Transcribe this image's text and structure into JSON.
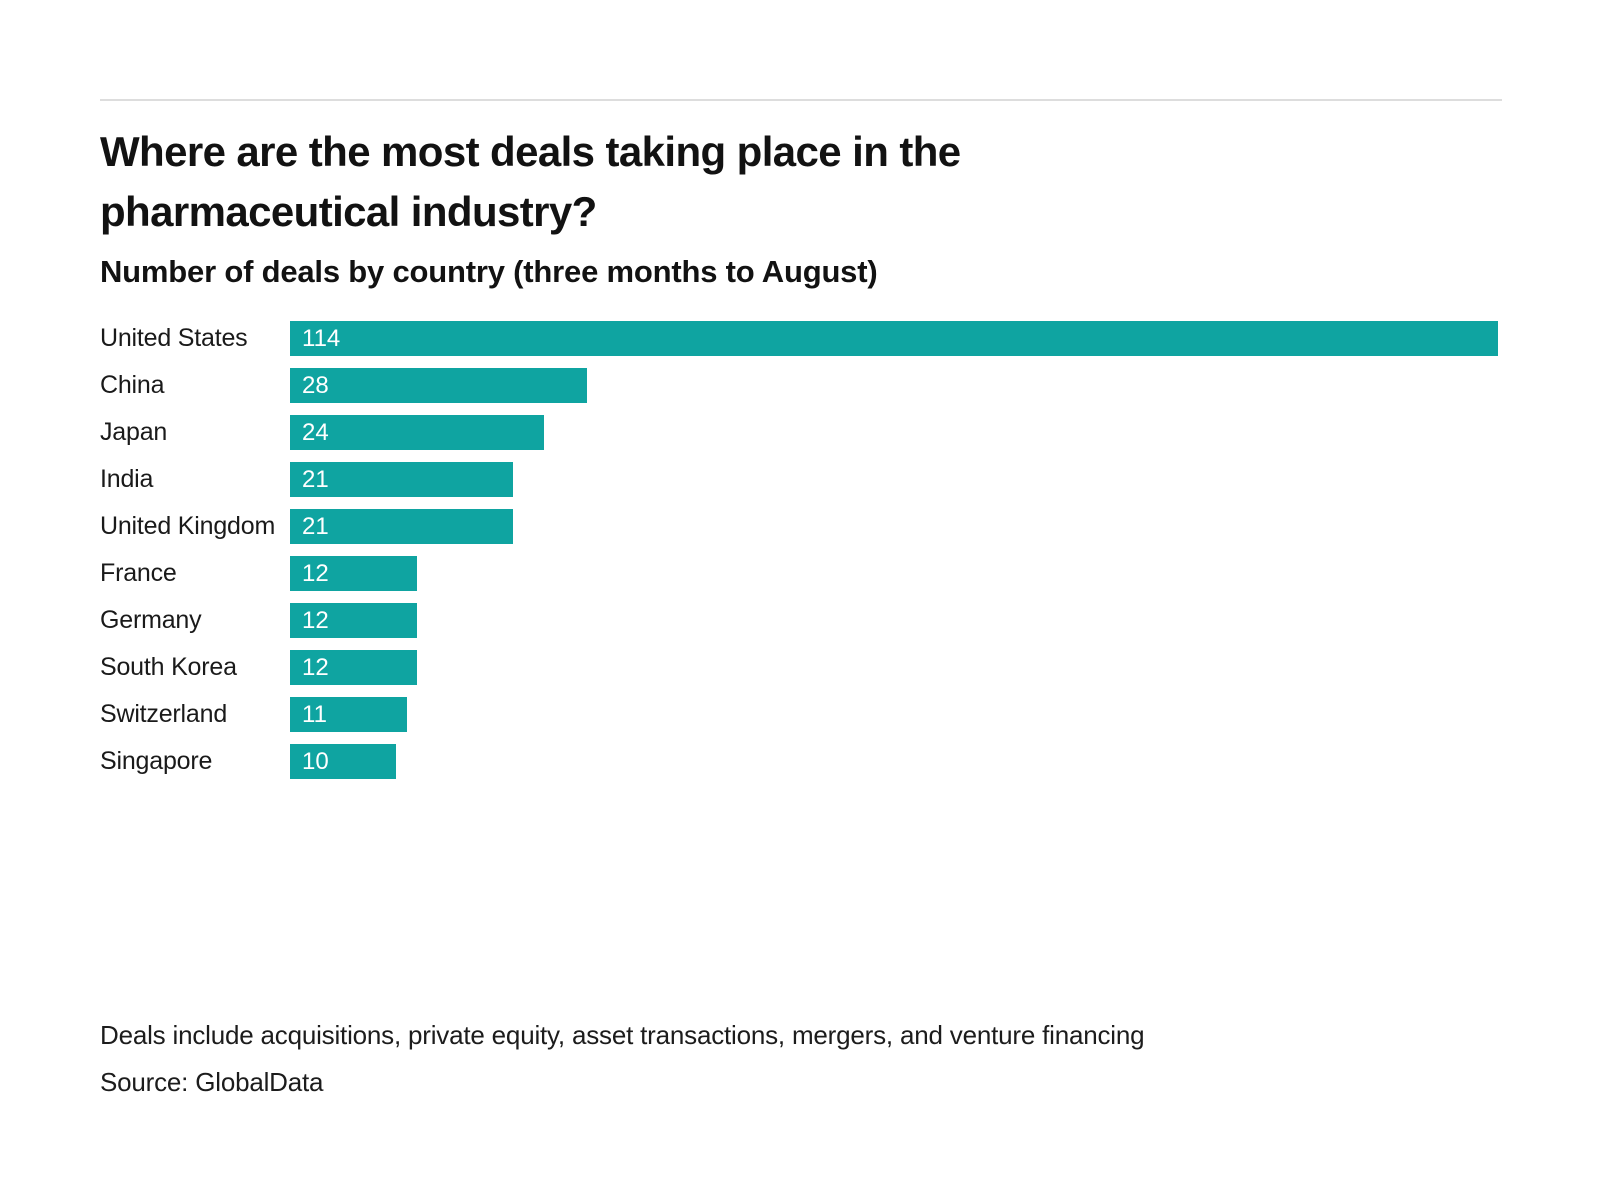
{
  "header": {
    "title": "Where are the most deals taking place in the pharmaceutical industry?",
    "subtitle": "Number of deals by country (three months to August)"
  },
  "chart_data": {
    "type": "bar",
    "orientation": "horizontal",
    "title": "Where are the most deals taking place in the pharmaceutical industry?",
    "subtitle": "Number of deals by country (three months to August)",
    "categories": [
      "United States",
      "China",
      "Japan",
      "India",
      "United Kingdom",
      "France",
      "Germany",
      "South Korea",
      "Switzerland",
      "Singapore"
    ],
    "values": [
      114,
      28,
      24,
      21,
      21,
      12,
      12,
      12,
      11,
      10
    ],
    "xlim": [
      0,
      114
    ],
    "grid": false,
    "legend": false,
    "value_labels": "inside-left",
    "bar_color": "#0fa4a1",
    "value_label_color": "#ffffff",
    "category_label_color": "#1a1a1a"
  },
  "footer": {
    "note": "Deals include acquisitions, private equity, asset transactions, mergers, and venture financing",
    "source": "Source: GlobalData"
  },
  "colors": {
    "accent_teal": "#0fa4a1",
    "divider_gray": "#dddddd",
    "text_dark": "#121212",
    "background": "#ffffff"
  }
}
